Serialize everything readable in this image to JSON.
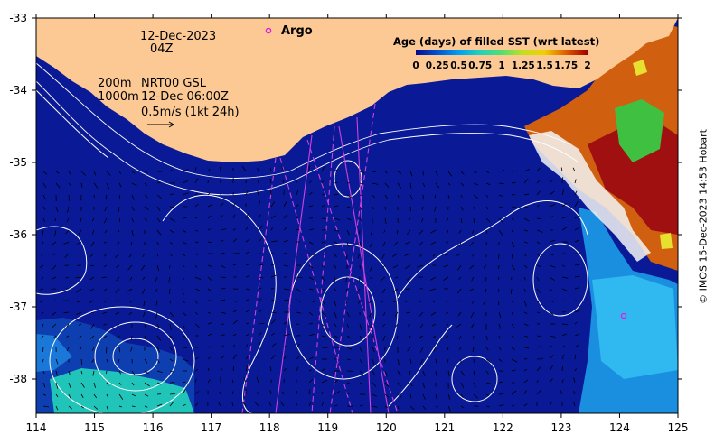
{
  "map": {
    "date": "12-Dec-2023",
    "time": "04Z",
    "argo_label": "Argo",
    "contour_200": "200m",
    "contour_1000": "1000m",
    "product": "NRT00 GSL",
    "product_time": "12-Dec 06:00Z",
    "scale_text": "0.5m/s (1kt 24h)",
    "credit": "© IMOS 15-Dec-2023 14:53 Hobart",
    "lon_ticks": [
      "114",
      "115",
      "116",
      "117",
      "118",
      "119",
      "120",
      "121",
      "122",
      "123",
      "124",
      "125"
    ],
    "lat_ticks": [
      "-33",
      "-34",
      "-35",
      "-36",
      "-37",
      "-38"
    ],
    "colorbar": {
      "title": "Age (days) of filled SST (wrt latest)",
      "labels": [
        "0",
        "0.25",
        "0.5",
        "0.75",
        "1",
        "1.25",
        "1.5",
        "1.75",
        "2"
      ],
      "colors": [
        "#0a0a8c",
        "#0050d0",
        "#00a0f0",
        "#20d0c0",
        "#50e070",
        "#a0e020",
        "#e8e000",
        "#f0a000",
        "#e05000",
        "#a00000"
      ]
    },
    "colors": {
      "ocean": "#0a1a96",
      "land": "#fcc995",
      "argo": "#e020e0",
      "track": "#d040e0"
    }
  }
}
